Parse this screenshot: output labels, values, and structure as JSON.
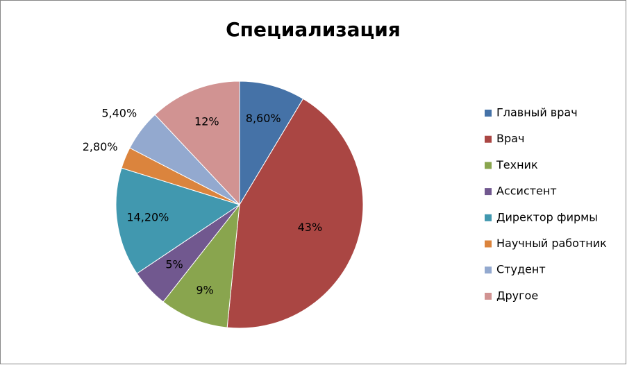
{
  "chart_data": {
    "type": "pie",
    "title": "Специализация",
    "categories": [
      "Главный врач",
      "Врач",
      "Техник",
      "Ассистент",
      "Директор фирмы",
      "Научный работник",
      "Студент",
      "Другое"
    ],
    "values": [
      8.6,
      43,
      9,
      5,
      14.2,
      2.8,
      5.4,
      12
    ],
    "value_labels": [
      "8,60%",
      "43%",
      "9%",
      "5%",
      "14,20%",
      "2,80%",
      "5,40%",
      "12%"
    ],
    "colors": [
      "#4572a7",
      "#aa4643",
      "#89a54e",
      "#71588f",
      "#4198af",
      "#db843d",
      "#93a9cf",
      "#d19392"
    ],
    "legend": "right"
  }
}
